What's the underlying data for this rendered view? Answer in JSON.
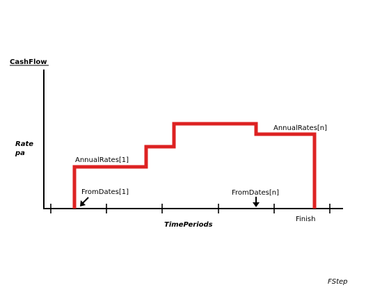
{
  "labels": {
    "y_axis_title": "CashFlow",
    "rate_line1": "Rate",
    "rate_line2": "pa",
    "x_axis_title": "TimePeriods",
    "annual_rates_first": "AnnualRates[1]",
    "annual_rates_last": "AnnualRates[n]",
    "from_dates_first": "FromDates[1]",
    "from_dates_last": "FromDates[n]",
    "finish": "Finish",
    "footer": "FStep"
  },
  "colors": {
    "step_line": "#dd2222",
    "axis": "#000000"
  }
}
